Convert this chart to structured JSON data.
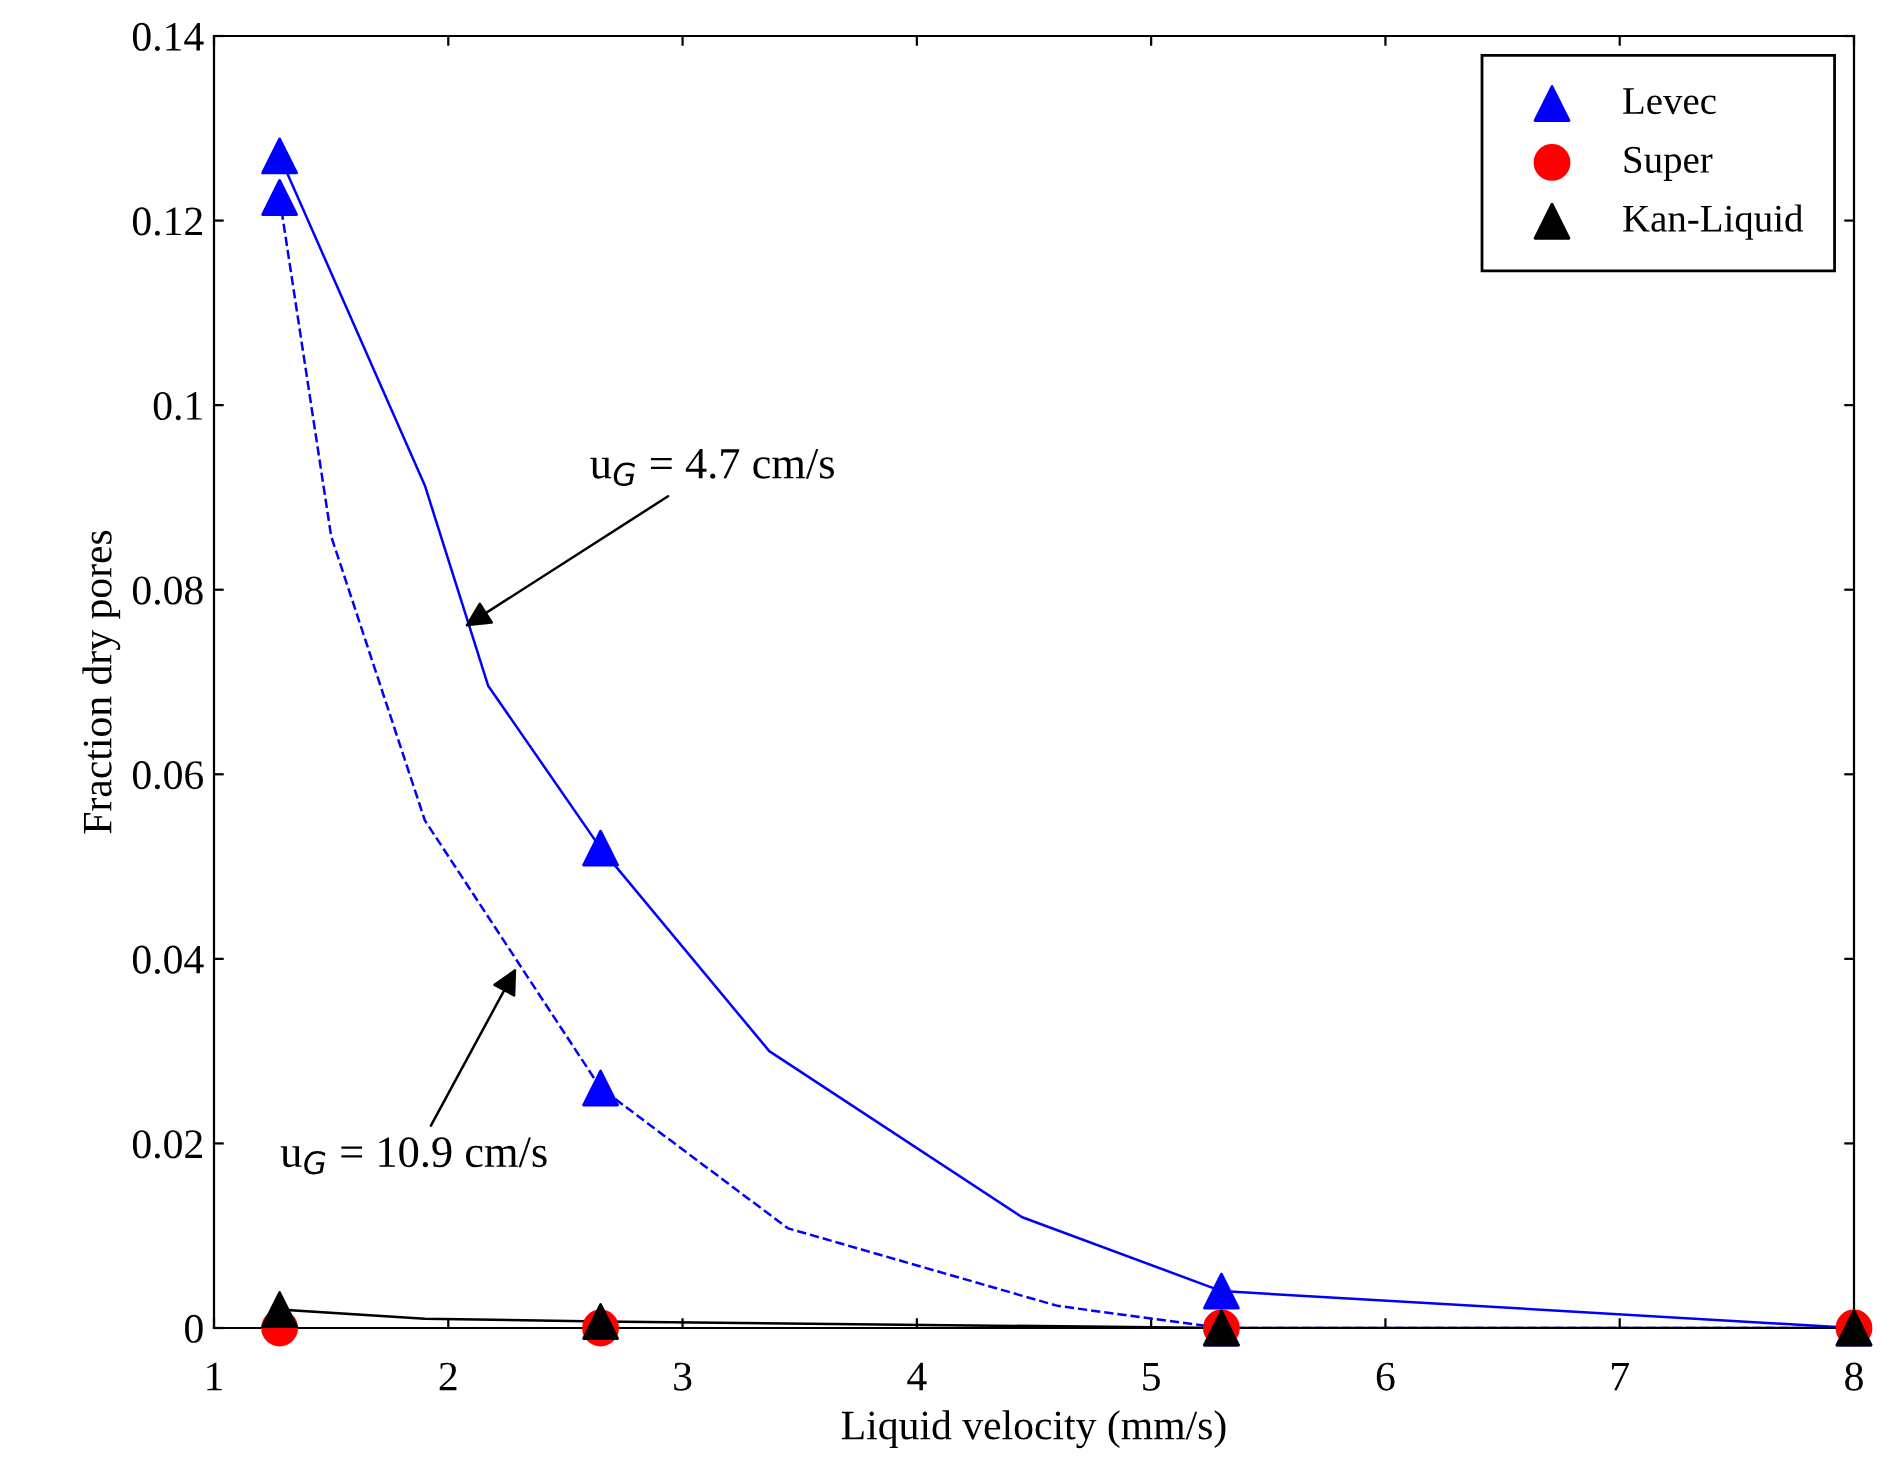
{
  "chart_data": {
    "type": "line",
    "xlabel": "Liquid velocity (mm/s)",
    "ylabel": "Fraction dry pores",
    "xlim": [
      1,
      8
    ],
    "xticks": [
      1,
      2,
      3,
      4,
      5,
      6,
      7,
      8
    ],
    "ylim": [
      0,
      0.14
    ],
    "yticks": [
      0,
      0.02,
      0.04,
      0.06,
      0.08,
      0.1,
      0.12,
      0.14
    ],
    "grid": false,
    "legend": "top right",
    "series": [
      {
        "color": "#0000ff",
        "line_style": "solid",
        "marker": "none",
        "x": [
          1.28,
          1.9,
          2.17,
          2.65,
          3.37,
          4.45,
          5.3,
          8
        ],
        "values": [
          0.127,
          0.0913,
          0.0696,
          0.052,
          0.03,
          0.012,
          0.004,
          0
        ]
      },
      {
        "color": "#0000ff",
        "line_style": "dashed",
        "marker": "none",
        "x": [
          1.28,
          1.5,
          1.9,
          2.65,
          3.45,
          4.6,
          5.3,
          8
        ],
        "values": [
          0.1225,
          0.0858,
          0.055,
          0.026,
          0.0108,
          0.0024,
          0,
          0
        ]
      },
      {
        "color": "#000000",
        "line_style": "solid",
        "marker": "none",
        "x": [
          1.28,
          1.9,
          2.65,
          5.3,
          8
        ],
        "values": [
          0.002,
          0.001,
          0.0007,
          0,
          0
        ]
      },
      {
        "type": "scatter",
        "name": "Levec",
        "color": "#0000ff",
        "marker": "triangle",
        "x": [
          1.28,
          1.28,
          2.65,
          2.65,
          5.3,
          5.3,
          8
        ],
        "values": [
          0.127,
          0.1225,
          0.052,
          0.026,
          0.004,
          0,
          0
        ]
      },
      {
        "type": "scatter",
        "name": "Super",
        "color": "#ff0000",
        "marker": "circle",
        "x": [
          1.28,
          2.65,
          5.3,
          8
        ],
        "values": [
          0,
          0,
          0,
          0
        ]
      },
      {
        "type": "scatter",
        "name": "Kan-Liquid",
        "color": "#000000",
        "marker": "triangle",
        "x": [
          1.28,
          2.65,
          5.3,
          8
        ],
        "values": [
          0.002,
          0.0007,
          0,
          0
        ]
      }
    ],
    "annotations": [
      {
        "text": "u$_{G}$ = 4.7 cm/s",
        "x": 2.07,
        "y": 0.076
      },
      {
        "text": "u$_{G}$ = 10.9 cm/s",
        "x": 2.29,
        "y": 0.039
      }
    ]
  }
}
